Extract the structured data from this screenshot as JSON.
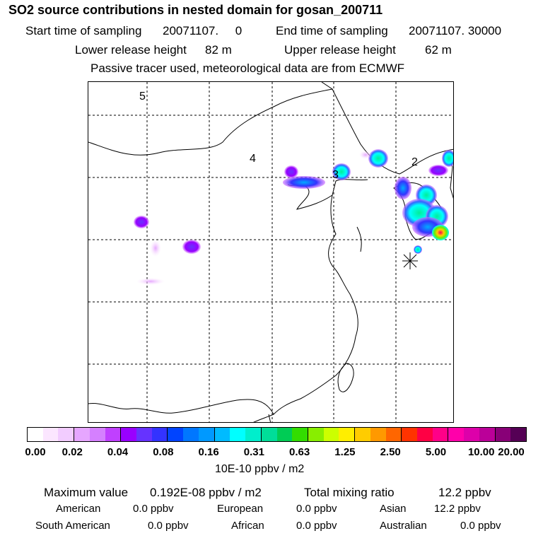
{
  "header": {
    "title": "SO2 source contributions in nested domain for gosan_200711",
    "start_label": "Start time of sampling",
    "start_value": "20071107.     0",
    "end_label": "End time of sampling",
    "end_value": "20071107. 30000",
    "lower_label": "Lower release height",
    "lower_value": "82 m",
    "upper_label": "Upper release height",
    "upper_value": "62 m",
    "note": "Passive tracer used, meteorological data are from ECMWF"
  },
  "map": {
    "region_labels": [
      "5",
      "4",
      "3",
      "2"
    ],
    "receptor_marker": "asterisk-receptor-icon"
  },
  "colorbar": {
    "colors": [
      "#ffffff",
      "#fbe6ff",
      "#f2ccff",
      "#e6a6ff",
      "#d580ff",
      "#c040ff",
      "#9900ff",
      "#6633ff",
      "#3333ff",
      "#0044ff",
      "#0077ff",
      "#0099ff",
      "#00bbff",
      "#00ffff",
      "#00eecc",
      "#00dd99",
      "#00cc55",
      "#33dd00",
      "#88ee00",
      "#ccff00",
      "#ffee00",
      "#ffcc00",
      "#ff9900",
      "#ff6600",
      "#ff3300",
      "#ff0044",
      "#ff0088",
      "#ff00aa",
      "#dd00aa",
      "#bb0099",
      "#880077",
      "#550055"
    ],
    "tick_labels": [
      "0.00",
      "0.02",
      "0.04",
      "0.08",
      "0.16",
      "0.31",
      "0.63",
      "1.25",
      "2.50",
      "5.00",
      "10.00",
      "20.00"
    ],
    "unit": "10E-10 ppbv / m2"
  },
  "summary": {
    "max_label": "Maximum value",
    "max_value": "0.192E-08 ppbv / m2",
    "total_label": "Total mixing ratio",
    "total_value": "12.2 ppbv",
    "regions": [
      {
        "name": "American",
        "value": "0.0 ppbv"
      },
      {
        "name": "European",
        "value": "0.0 ppbv"
      },
      {
        "name": "Asian",
        "value": "12.2 ppbv"
      },
      {
        "name": "South American",
        "value": "0.0 ppbv"
      },
      {
        "name": "African",
        "value": "0.0 ppbv"
      },
      {
        "name": "Australian",
        "value": "0.0 ppbv"
      }
    ]
  }
}
